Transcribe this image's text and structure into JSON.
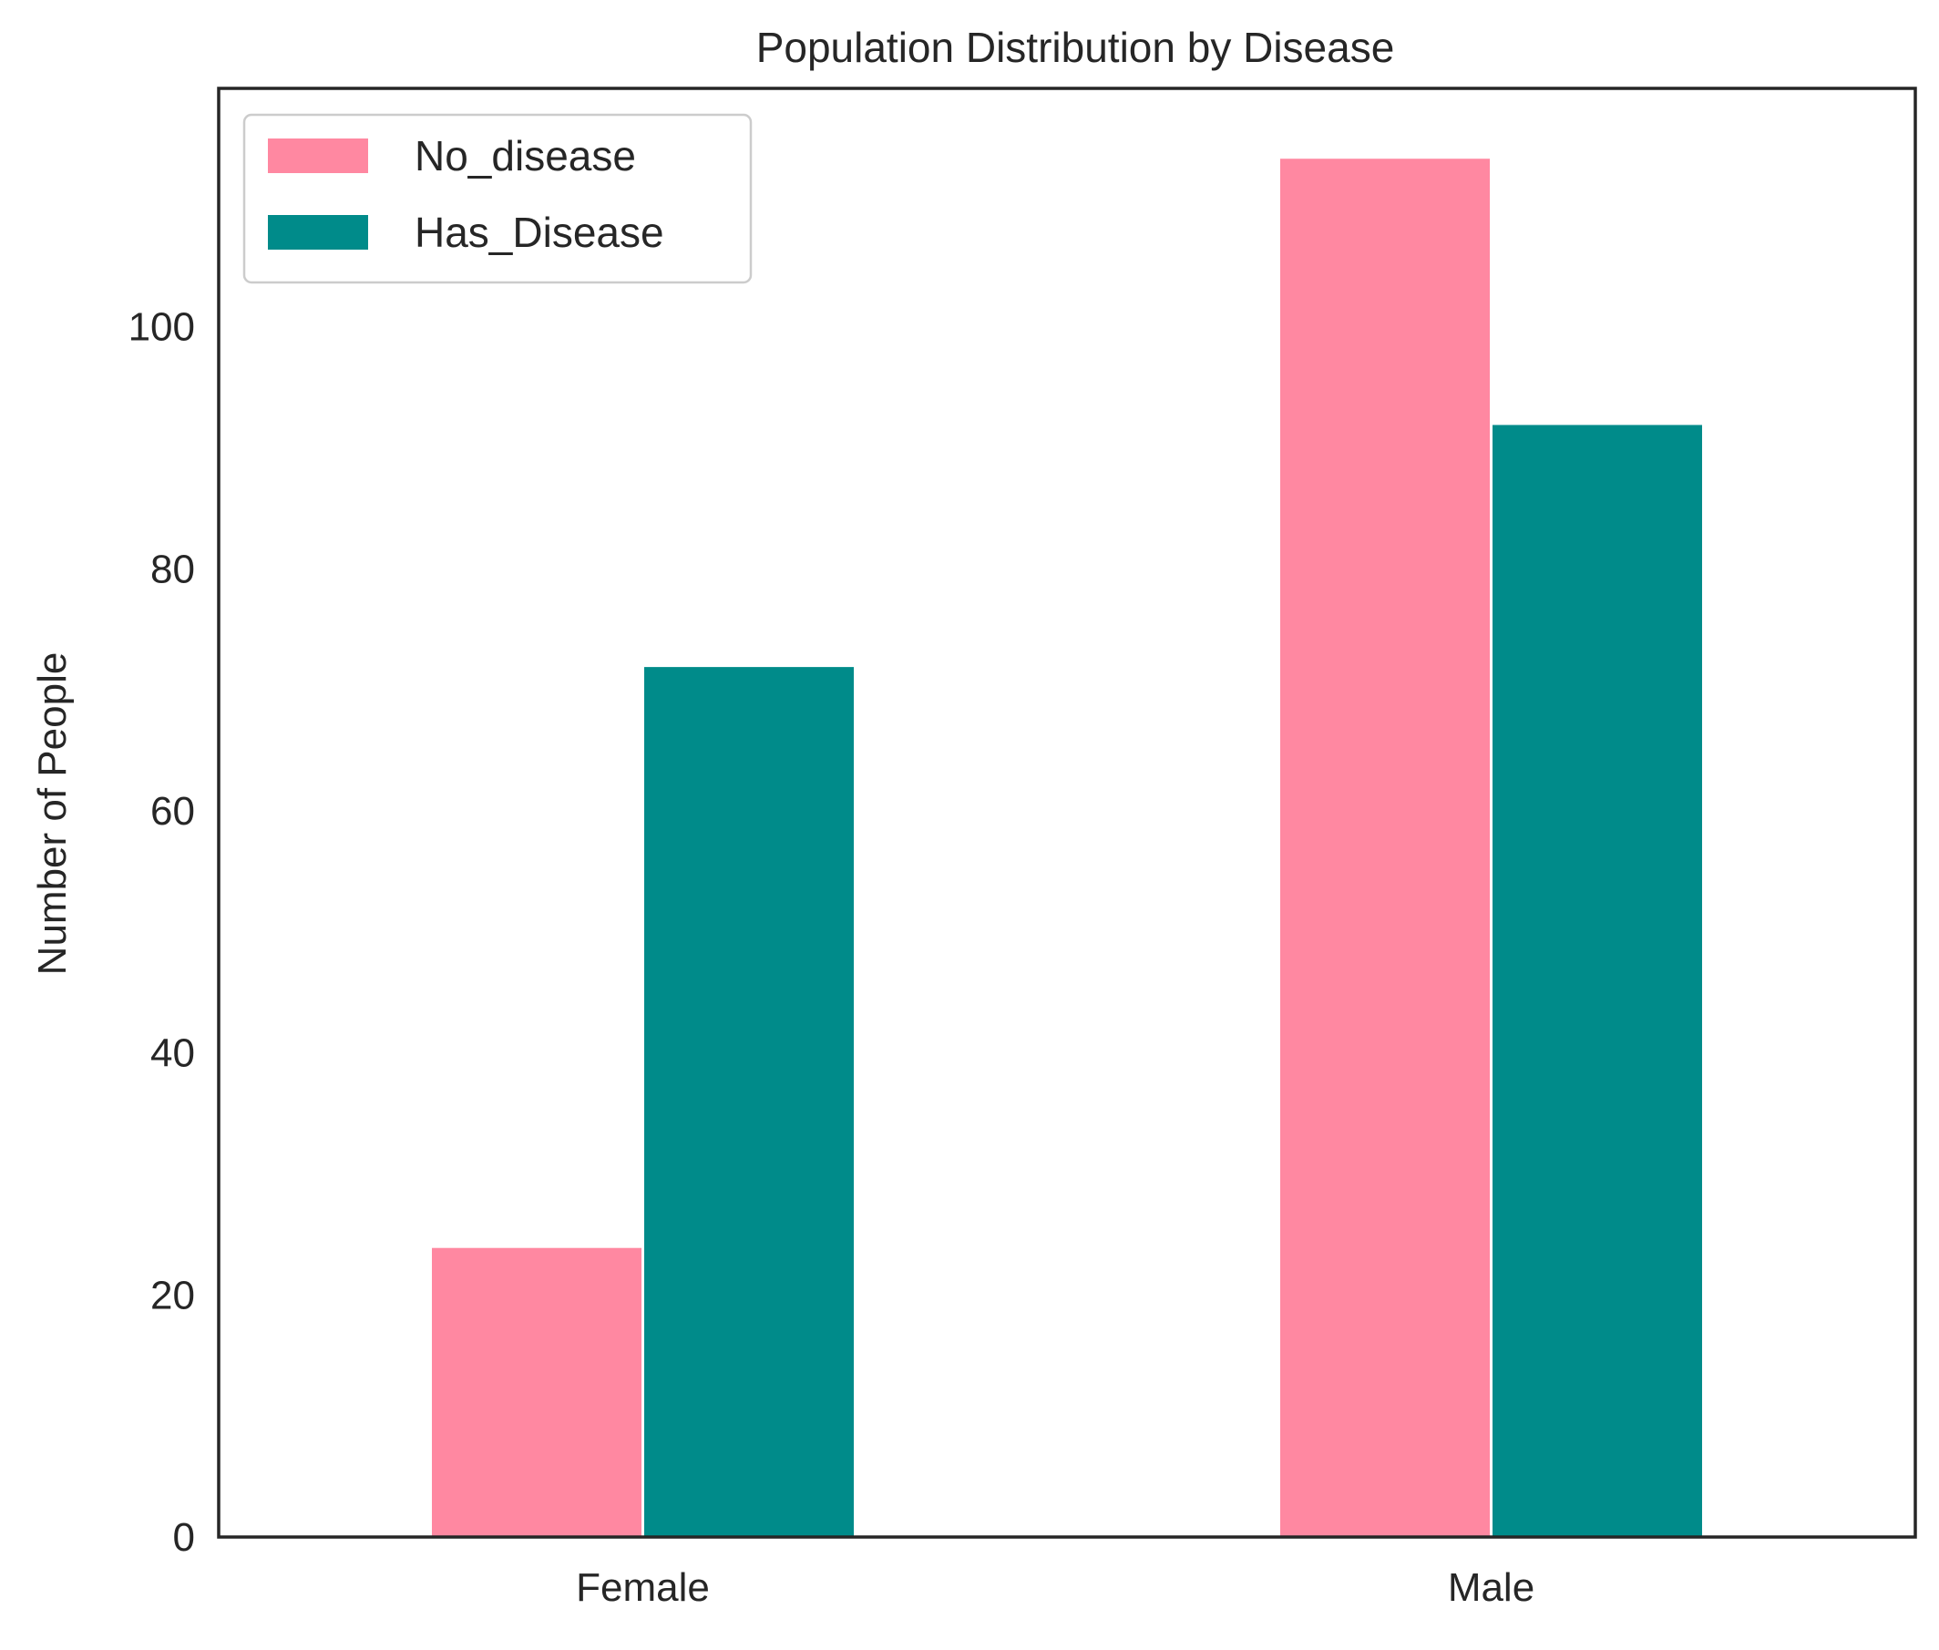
{
  "chart_data": {
    "type": "bar",
    "title": "Population Distribution by Disease",
    "xlabel": "",
    "ylabel": "Number of People",
    "categories": [
      "Female",
      "Male"
    ],
    "series": [
      {
        "name": "No_disease",
        "values": [
          24,
          114
        ],
        "color": "#ff88a1"
      },
      {
        "name": "Has_Disease",
        "values": [
          72,
          92
        ],
        "color": "#008b8a"
      }
    ],
    "ylim": [
      0,
      119.7
    ],
    "yticks": [
      0,
      20,
      40,
      60,
      80,
      100
    ],
    "grid": false,
    "legend": "top-left"
  }
}
